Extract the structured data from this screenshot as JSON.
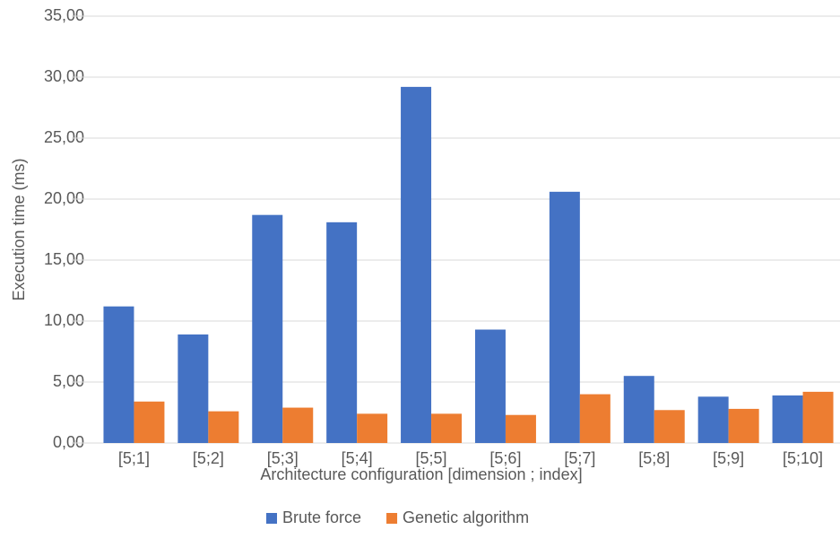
{
  "chart_data": {
    "type": "bar",
    "x_label": "Architecture configuration [dimension ; index]",
    "y_label": "Execution time (ms)",
    "categories": [
      "[5;1]",
      "[5;2]",
      "[5;3]",
      "[5;4]",
      "[5;5]",
      "[5;6]",
      "[5;7]",
      "[5;8]",
      "[5;9]",
      "[5;10]"
    ],
    "series": [
      {
        "name": "Brute force",
        "color": "#4472c4",
        "values": [
          11.2,
          8.9,
          18.7,
          18.1,
          29.2,
          9.3,
          20.6,
          5.5,
          3.8,
          3.9
        ]
      },
      {
        "name": "Genetic algorithm",
        "color": "#ed7d31",
        "values": [
          3.4,
          2.6,
          2.9,
          2.4,
          2.4,
          2.3,
          4.0,
          2.7,
          2.8,
          4.2
        ]
      }
    ],
    "ylim": [
      0,
      35
    ],
    "yticks": [
      {
        "value": 0,
        "label": "0,00"
      },
      {
        "value": 5,
        "label": "5,00"
      },
      {
        "value": 10,
        "label": "10,00"
      },
      {
        "value": 15,
        "label": "15,00"
      },
      {
        "value": 20,
        "label": "20,00"
      },
      {
        "value": 25,
        "label": "25,00"
      },
      {
        "value": 30,
        "label": "30,00"
      },
      {
        "value": 35,
        "label": "35,00"
      }
    ],
    "grid": true,
    "legend": "bottom"
  }
}
